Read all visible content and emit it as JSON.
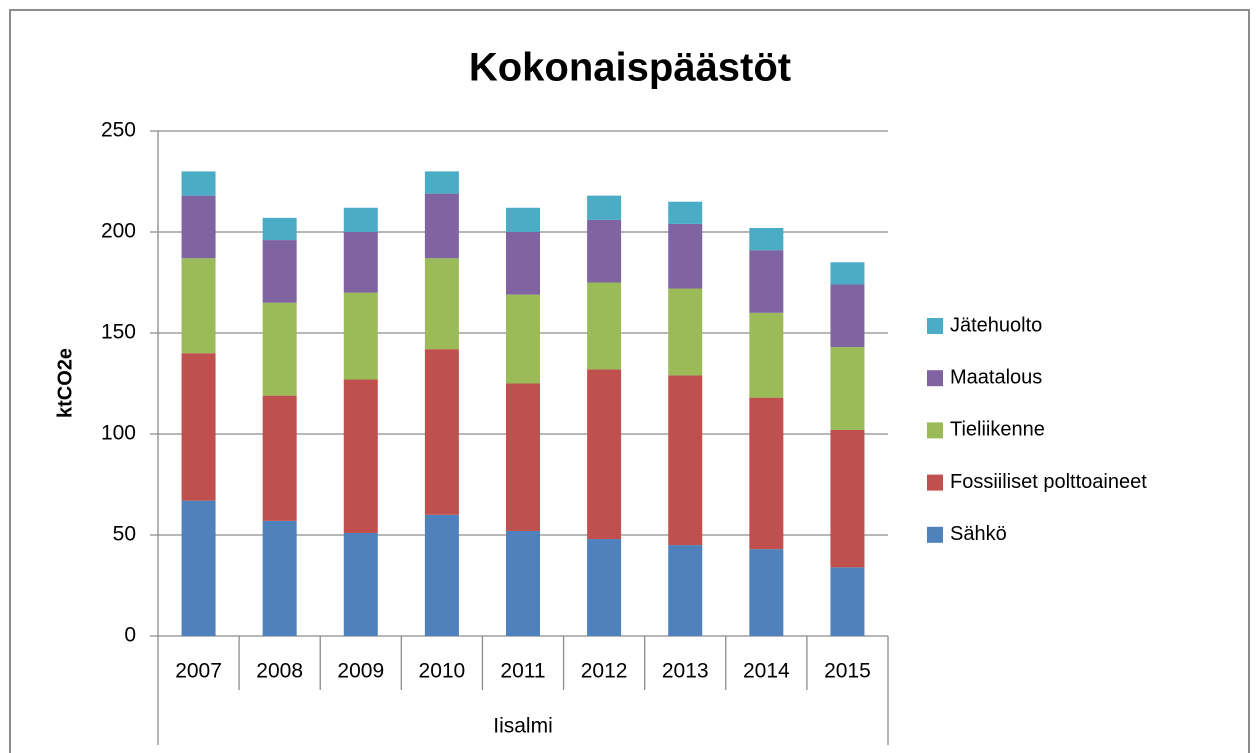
{
  "chart_data": {
    "type": "stacked_bar",
    "title": "Kokonaispäästöt",
    "y_label": "ktCO2e",
    "x_group_label": "Iisalmi",
    "categories": [
      "2007",
      "2008",
      "2009",
      "2010",
      "2011",
      "2012",
      "2013",
      "2014",
      "2015"
    ],
    "series": [
      {
        "name": "Sähkö",
        "color": "#4f81bd",
        "values": [
          67,
          57,
          51,
          60,
          52,
          48,
          45,
          43,
          34
        ]
      },
      {
        "name": "Fossiiliset polttoaineet",
        "color": "#c0504d",
        "values": [
          73,
          62,
          76,
          82,
          73,
          84,
          84,
          75,
          68
        ]
      },
      {
        "name": "Tieliikenne",
        "color": "#9bbb59",
        "values": [
          47,
          46,
          43,
          45,
          44,
          43,
          43,
          42,
          41
        ]
      },
      {
        "name": "Maatalous",
        "color": "#8064a2",
        "values": [
          31,
          31,
          30,
          32,
          31,
          31,
          32,
          31,
          31
        ]
      },
      {
        "name": "Jätehuolto",
        "color": "#4bacc6",
        "values": [
          12,
          11,
          12,
          11,
          12,
          12,
          11,
          11,
          11
        ]
      }
    ],
    "ylim": [
      0,
      250
    ],
    "yticks": [
      0,
      50,
      100,
      150,
      200,
      250
    ],
    "grid": true,
    "legend": "right"
  }
}
